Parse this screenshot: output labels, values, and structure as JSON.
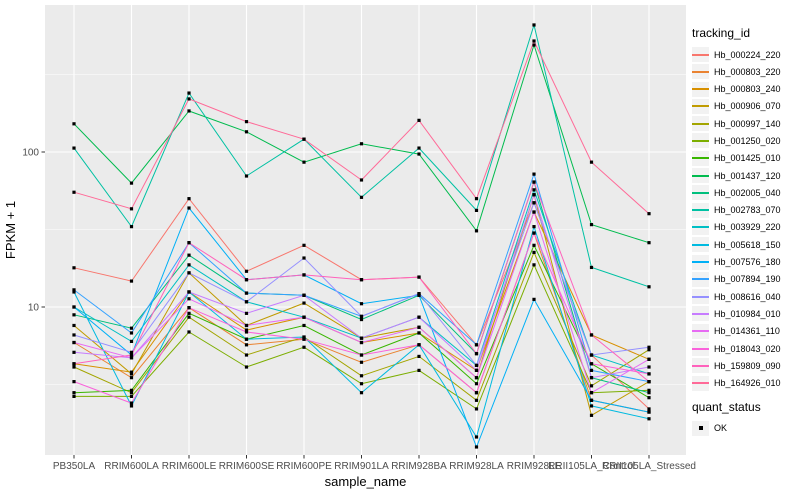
{
  "figure": {
    "background": "#FFFFFF",
    "panel_background": "#EBEBEB",
    "grid_color": "#FFFFFF",
    "tick_label_color": "#4D4D4D",
    "marker_color": "#000000"
  },
  "chart_data": {
    "type": "line",
    "title": "",
    "xlabel": "sample_name",
    "ylabel": "FPKM + 1",
    "y_scale": "log10",
    "ylim": [
      1.1,
      820
    ],
    "grid": "on",
    "y_tick_labels": [
      "10",
      "100"
    ],
    "y_tick_values": [
      10,
      100
    ],
    "y_minor_values": [
      3.162,
      31.62,
      316.2
    ],
    "categories": [
      "PB350LA",
      "RRIM600LA",
      "RRIM600LE",
      "RRIM600SE",
      "RRIM600PE",
      "RRIM901LA",
      "RRIM928BA",
      "RRIM928LA",
      "RRIM928LE",
      "RRII105LA_Control",
      "RRII105LA_Stressed"
    ],
    "legend": {
      "title": "tracking_id",
      "position": "right"
    },
    "status_legend": {
      "title": "quant_status",
      "items": [
        {
          "label": "OK",
          "marker": "black-square"
        }
      ]
    },
    "series": [
      {
        "name": "Hb_000224_220",
        "color": "#F8766D",
        "values": [
          17.9,
          14.7,
          50,
          17,
          25,
          15,
          15.6,
          5.7,
          47,
          4.9,
          2.2
        ]
      },
      {
        "name": "Hb_000803_220",
        "color": "#EA8331",
        "values": [
          5.9,
          3.5,
          9.9,
          5.7,
          6.2,
          4.4,
          5.7,
          2.8,
          30,
          2.5,
          2.1
        ]
      },
      {
        "name": "Hb_000803_240",
        "color": "#D89000",
        "values": [
          4.3,
          3.8,
          12.5,
          7.1,
          8.6,
          5.9,
          6.8,
          3.9,
          41,
          6.6,
          4.6
        ]
      },
      {
        "name": "Hb_000906_070",
        "color": "#C09B00",
        "values": [
          7.6,
          3.7,
          16.6,
          7.6,
          10.6,
          6.3,
          7.4,
          3.5,
          53,
          2.0,
          3.3
        ]
      },
      {
        "name": "Hb_000997_140",
        "color": "#A3A500",
        "values": [
          4.1,
          2.8,
          8.6,
          4.9,
          6.4,
          3.6,
          4.8,
          2.5,
          22.5,
          3.1,
          5.3
        ]
      },
      {
        "name": "Hb_001250_020",
        "color": "#7CAE00",
        "values": [
          2.65,
          2.65,
          6.9,
          4.1,
          5.5,
          3.2,
          3.9,
          2.2,
          18.7,
          2.8,
          2.9
        ]
      },
      {
        "name": "Hb_001425_010",
        "color": "#39B600",
        "values": [
          2.8,
          2.9,
          9.1,
          6.2,
          7.6,
          4.9,
          6.8,
          3.2,
          25,
          4.3,
          2.6
        ]
      },
      {
        "name": "Hb_001437_120",
        "color": "#00BB4E",
        "values": [
          152,
          63,
          184,
          135,
          86,
          113,
          97,
          31,
          490,
          34,
          26
        ]
      },
      {
        "name": "Hb_002005_040",
        "color": "#00BF7D",
        "values": [
          8.9,
          7.3,
          21.6,
          12.3,
          11.9,
          8.3,
          11.9,
          5.0,
          64,
          3.5,
          2.8
        ]
      },
      {
        "name": "Hb_002783_070",
        "color": "#00C1A3",
        "values": [
          106,
          33,
          240,
          70,
          121,
          51,
          106,
          42,
          660,
          18,
          13.5
        ]
      },
      {
        "name": "Hb_003929_220",
        "color": "#00BFC4",
        "values": [
          10.0,
          6.0,
          18.7,
          10.8,
          8.6,
          6.3,
          8.6,
          4.2,
          57,
          4.9,
          3.7
        ]
      },
      {
        "name": "Hb_005618_150",
        "color": "#00BAE0",
        "values": [
          12.5,
          2.3,
          12.5,
          6.2,
          6.4,
          2.8,
          5.7,
          1.45,
          33,
          2.3,
          1.9
        ]
      },
      {
        "name": "Hb_007576_180",
        "color": "#00B0F6",
        "values": [
          10.0,
          4.9,
          43.5,
          15,
          16.1,
          10.5,
          11.9,
          1.25,
          11.2,
          2.5,
          2.1
        ]
      },
      {
        "name": "Hb_007894_190",
        "color": "#35A2FF",
        "values": [
          12.9,
          6.8,
          26,
          12.3,
          11.9,
          8.7,
          12.2,
          5.7,
          72,
          3.9,
          3.3
        ]
      },
      {
        "name": "Hb_008616_040",
        "color": "#9590FF",
        "values": [
          6.6,
          5.1,
          16.6,
          10.8,
          20.7,
          8.7,
          12.2,
          4.2,
          47,
          4.9,
          5.5
        ]
      },
      {
        "name": "Hb_010984_010",
        "color": "#C77CFF",
        "values": [
          5.1,
          4.7,
          12.5,
          9.1,
          11.9,
          6.3,
          8.6,
          3.9,
          53,
          3.5,
          4.1
        ]
      },
      {
        "name": "Hb_014361_110",
        "color": "#E76BF3",
        "values": [
          5.9,
          4.7,
          11.3,
          7.6,
          8.6,
          5.9,
          7.4,
          3.5,
          41,
          2.8,
          4.6
        ]
      },
      {
        "name": "Hb_018043_020",
        "color": "#FA62DB",
        "values": [
          3.3,
          2.4,
          9.9,
          6.9,
          6.2,
          4.9,
          5.7,
          2.8,
          30,
          4.3,
          3.7
        ]
      },
      {
        "name": "Hb_159809_090",
        "color": "#FF62BC",
        "values": [
          4.3,
          4.9,
          26,
          15,
          16.1,
          15,
          15.6,
          5.0,
          64,
          6.6,
          3.3
        ]
      },
      {
        "name": "Hb_164926_010",
        "color": "#FF6A98",
        "values": [
          55,
          43,
          220,
          157,
          121,
          66,
          160,
          50,
          520,
          86,
          40
        ]
      }
    ]
  }
}
